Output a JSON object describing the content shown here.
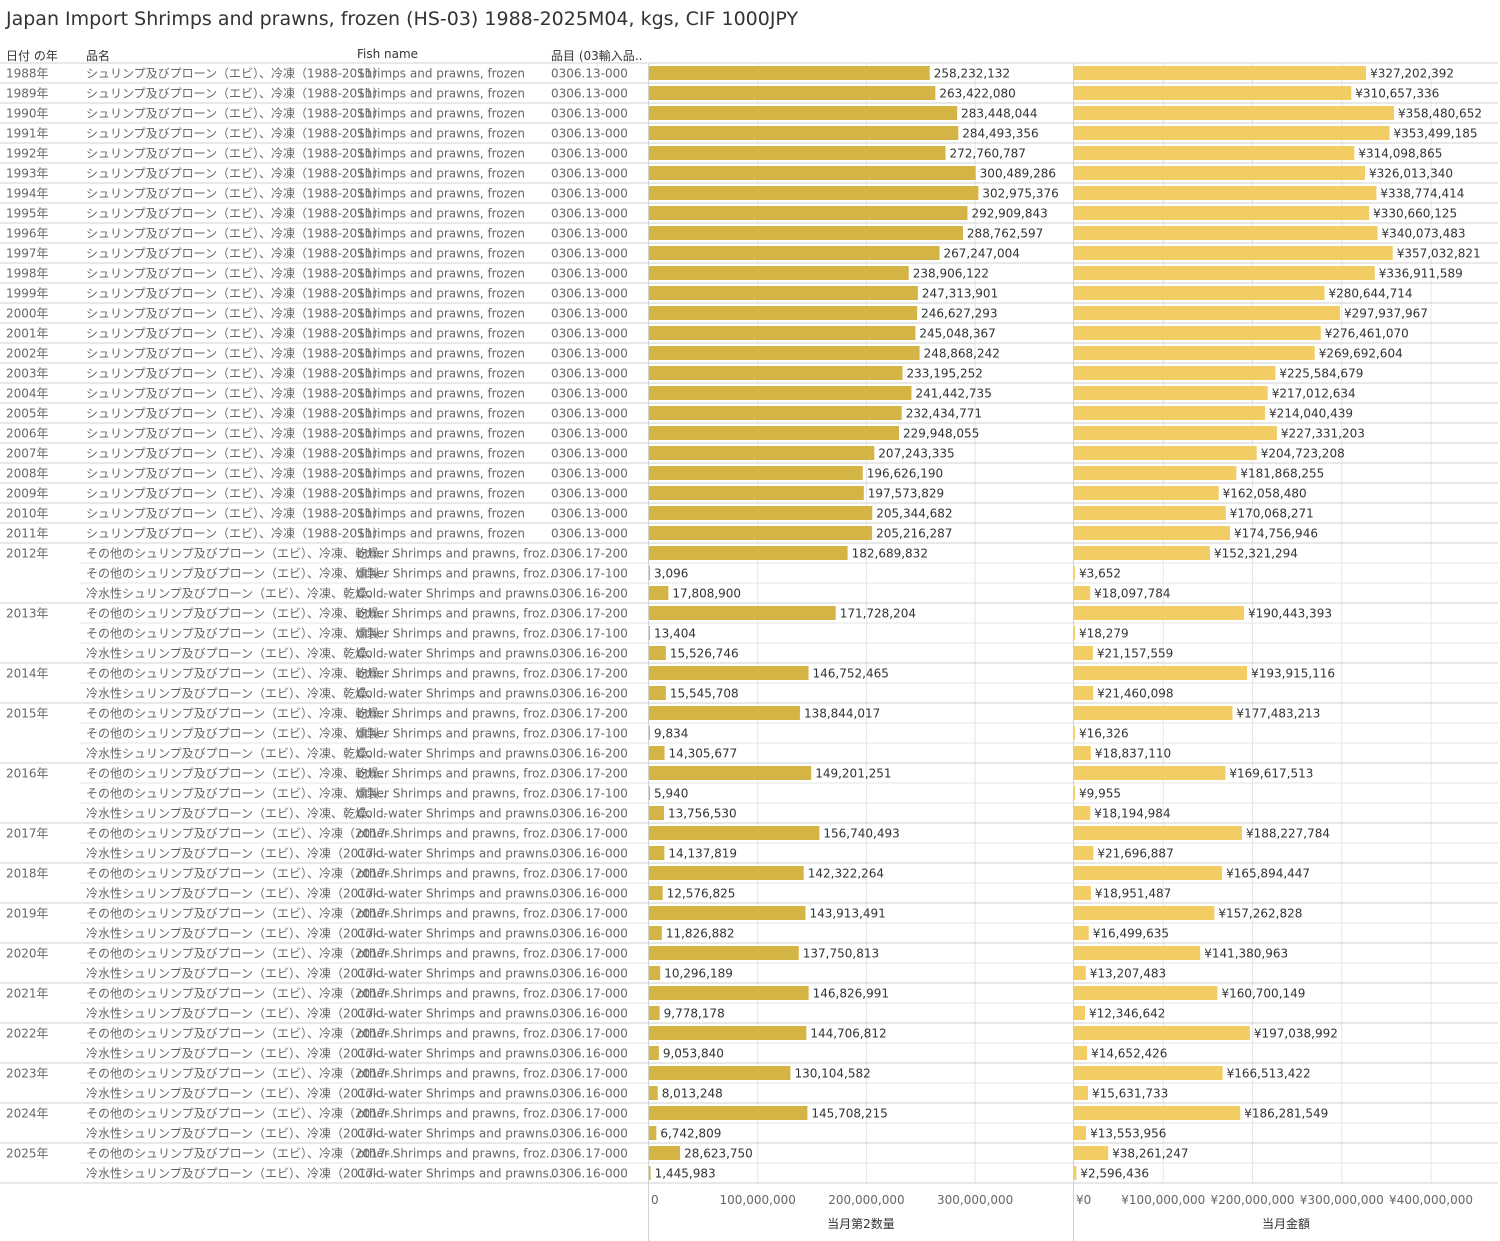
{
  "title": "Japan Import Shrimps and prawns, frozen (HS-03) 1988-2025M04, kgs, CIF 1000JPY",
  "headers": {
    "year": "日付 の年",
    "name": "品名",
    "fish": "Fish name",
    "code": "品目 (03輸入品.."
  },
  "colors": {
    "qty": "#d4b445",
    "val": "#f1cd63",
    "grid": "#e6e6e6",
    "axis": "#d2d2d2"
  },
  "chart_data": {
    "type": "bar",
    "xlabel_qty": "当月第2数量",
    "xlabel_val": "当月金額",
    "xlim_qty": [
      0,
      390000000
    ],
    "xlim_val": [
      0,
      475000000
    ],
    "ticks_qty": [
      "0",
      "100,000,000",
      "200,000,000",
      "300,000,000"
    ],
    "ticks_qty_values": [
      0,
      100000000,
      200000000,
      300000000
    ],
    "ticks_val": [
      "¥0",
      "¥100,000,000",
      "¥200,000,000",
      "¥300,000,000",
      "¥400,000,000"
    ],
    "ticks_val_values": [
      0,
      100000000,
      200000000,
      300000000,
      400000000
    ],
    "rows": [
      {
        "year": "1988年",
        "name": "シュリンプ及びプローン（エビ）、冷凍（1988-2011）",
        "fish": "Shrimps and prawns, frozen",
        "code": "0306.13-000",
        "qty": 258232132,
        "qty_label": "258,232,132",
        "val": 327202392,
        "val_label": "¥327,202,392"
      },
      {
        "year": "1989年",
        "name": "シュリンプ及びプローン（エビ）、冷凍（1988-2011）",
        "fish": "Shrimps and prawns, frozen",
        "code": "0306.13-000",
        "qty": 263422080,
        "qty_label": "263,422,080",
        "val": 310657336,
        "val_label": "¥310,657,336"
      },
      {
        "year": "1990年",
        "name": "シュリンプ及びプローン（エビ）、冷凍（1988-2011）",
        "fish": "Shrimps and prawns, frozen",
        "code": "0306.13-000",
        "qty": 283448044,
        "qty_label": "283,448,044",
        "val": 358480652,
        "val_label": "¥358,480,652"
      },
      {
        "year": "1991年",
        "name": "シュリンプ及びプローン（エビ）、冷凍（1988-2011）",
        "fish": "Shrimps and prawns, frozen",
        "code": "0306.13-000",
        "qty": 284493356,
        "qty_label": "284,493,356",
        "val": 353499185,
        "val_label": "¥353,499,185"
      },
      {
        "year": "1992年",
        "name": "シュリンプ及びプローン（エビ）、冷凍（1988-2011）",
        "fish": "Shrimps and prawns, frozen",
        "code": "0306.13-000",
        "qty": 272760787,
        "qty_label": "272,760,787",
        "val": 314098865,
        "val_label": "¥314,098,865"
      },
      {
        "year": "1993年",
        "name": "シュリンプ及びプローン（エビ）、冷凍（1988-2011）",
        "fish": "Shrimps and prawns, frozen",
        "code": "0306.13-000",
        "qty": 300489286,
        "qty_label": "300,489,286",
        "val": 326013340,
        "val_label": "¥326,013,340"
      },
      {
        "year": "1994年",
        "name": "シュリンプ及びプローン（エビ）、冷凍（1988-2011）",
        "fish": "Shrimps and prawns, frozen",
        "code": "0306.13-000",
        "qty": 302975376,
        "qty_label": "302,975,376",
        "val": 338774414,
        "val_label": "¥338,774,414"
      },
      {
        "year": "1995年",
        "name": "シュリンプ及びプローン（エビ）、冷凍（1988-2011）",
        "fish": "Shrimps and prawns, frozen",
        "code": "0306.13-000",
        "qty": 292909843,
        "qty_label": "292,909,843",
        "val": 330660125,
        "val_label": "¥330,660,125"
      },
      {
        "year": "1996年",
        "name": "シュリンプ及びプローン（エビ）、冷凍（1988-2011）",
        "fish": "Shrimps and prawns, frozen",
        "code": "0306.13-000",
        "qty": 288762597,
        "qty_label": "288,762,597",
        "val": 340073483,
        "val_label": "¥340,073,483"
      },
      {
        "year": "1997年",
        "name": "シュリンプ及びプローン（エビ）、冷凍（1988-2011）",
        "fish": "Shrimps and prawns, frozen",
        "code": "0306.13-000",
        "qty": 267247004,
        "qty_label": "267,247,004",
        "val": 357032821,
        "val_label": "¥357,032,821"
      },
      {
        "year": "1998年",
        "name": "シュリンプ及びプローン（エビ）、冷凍（1988-2011）",
        "fish": "Shrimps and prawns, frozen",
        "code": "0306.13-000",
        "qty": 238906122,
        "qty_label": "238,906,122",
        "val": 336911589,
        "val_label": "¥336,911,589"
      },
      {
        "year": "1999年",
        "name": "シュリンプ及びプローン（エビ）、冷凍（1988-2011）",
        "fish": "Shrimps and prawns, frozen",
        "code": "0306.13-000",
        "qty": 247313901,
        "qty_label": "247,313,901",
        "val": 280644714,
        "val_label": "¥280,644,714"
      },
      {
        "year": "2000年",
        "name": "シュリンプ及びプローン（エビ）、冷凍（1988-2011）",
        "fish": "Shrimps and prawns, frozen",
        "code": "0306.13-000",
        "qty": 246627293,
        "qty_label": "246,627,293",
        "val": 297937967,
        "val_label": "¥297,937,967"
      },
      {
        "year": "2001年",
        "name": "シュリンプ及びプローン（エビ）、冷凍（1988-2011）",
        "fish": "Shrimps and prawns, frozen",
        "code": "0306.13-000",
        "qty": 245048367,
        "qty_label": "245,048,367",
        "val": 276461070,
        "val_label": "¥276,461,070"
      },
      {
        "year": "2002年",
        "name": "シュリンプ及びプローン（エビ）、冷凍（1988-2011）",
        "fish": "Shrimps and prawns, frozen",
        "code": "0306.13-000",
        "qty": 248868242,
        "qty_label": "248,868,242",
        "val": 269692604,
        "val_label": "¥269,692,604"
      },
      {
        "year": "2003年",
        "name": "シュリンプ及びプローン（エビ）、冷凍（1988-2011）",
        "fish": "Shrimps and prawns, frozen",
        "code": "0306.13-000",
        "qty": 233195252,
        "qty_label": "233,195,252",
        "val": 225584679,
        "val_label": "¥225,584,679"
      },
      {
        "year": "2004年",
        "name": "シュリンプ及びプローン（エビ）、冷凍（1988-2011）",
        "fish": "Shrimps and prawns, frozen",
        "code": "0306.13-000",
        "qty": 241442735,
        "qty_label": "241,442,735",
        "val": 217012634,
        "val_label": "¥217,012,634"
      },
      {
        "year": "2005年",
        "name": "シュリンプ及びプローン（エビ）、冷凍（1988-2011）",
        "fish": "Shrimps and prawns, frozen",
        "code": "0306.13-000",
        "qty": 232434771,
        "qty_label": "232,434,771",
        "val": 214040439,
        "val_label": "¥214,040,439"
      },
      {
        "year": "2006年",
        "name": "シュリンプ及びプローン（エビ）、冷凍（1988-2011）",
        "fish": "Shrimps and prawns, frozen",
        "code": "0306.13-000",
        "qty": 229948055,
        "qty_label": "229,948,055",
        "val": 227331203,
        "val_label": "¥227,331,203"
      },
      {
        "year": "2007年",
        "name": "シュリンプ及びプローン（エビ）、冷凍（1988-2011）",
        "fish": "Shrimps and prawns, frozen",
        "code": "0306.13-000",
        "qty": 207243335,
        "qty_label": "207,243,335",
        "val": 204723208,
        "val_label": "¥204,723,208"
      },
      {
        "year": "2008年",
        "name": "シュリンプ及びプローン（エビ）、冷凍（1988-2011）",
        "fish": "Shrimps and prawns, frozen",
        "code": "0306.13-000",
        "qty": 196626190,
        "qty_label": "196,626,190",
        "val": 181868255,
        "val_label": "¥181,868,255"
      },
      {
        "year": "2009年",
        "name": "シュリンプ及びプローン（エビ）、冷凍（1988-2011）",
        "fish": "Shrimps and prawns, frozen",
        "code": "0306.13-000",
        "qty": 197573829,
        "qty_label": "197,573,829",
        "val": 162058480,
        "val_label": "¥162,058,480"
      },
      {
        "year": "2010年",
        "name": "シュリンプ及びプローン（エビ）、冷凍（1988-2011）",
        "fish": "Shrimps and prawns, frozen",
        "code": "0306.13-000",
        "qty": 205344682,
        "qty_label": "205,344,682",
        "val": 170068271,
        "val_label": "¥170,068,271"
      },
      {
        "year": "2011年",
        "name": "シュリンプ及びプローン（エビ）、冷凍（1988-2011）",
        "fish": "Shrimps and prawns, frozen",
        "code": "0306.13-000",
        "qty": 205216287,
        "qty_label": "205,216,287",
        "val": 174756946,
        "val_label": "¥174,756,946"
      },
      {
        "year": "2012年",
        "name": "その他のシュリンプ及びプローン（エビ）、冷凍、乾燥、..",
        "fish": "other Shrimps and prawns, froz..",
        "code": "0306.17-200",
        "qty": 182689832,
        "qty_label": "182,689,832",
        "val": 152321294,
        "val_label": "¥152,321,294"
      },
      {
        "year": "",
        "name": "その他のシュリンプ及びプローン（エビ）、冷凍、燻製..",
        "fish": "other Shrimps and prawns, froz..",
        "code": "0306.17-100",
        "qty": 3096,
        "qty_label": "3,096",
        "val": 3652,
        "val_label": "¥3,652"
      },
      {
        "year": "",
        "name": "冷水性シュリンプ及びプローン（エビ）、冷凍、乾燥、..",
        "fish": "Cold-water Shrimps and prawns..",
        "code": "0306.16-200",
        "qty": 17808900,
        "qty_label": "17,808,900",
        "val": 18097784,
        "val_label": "¥18,097,784"
      },
      {
        "year": "2013年",
        "name": "その他のシュリンプ及びプローン（エビ）、冷凍、乾燥、..",
        "fish": "other Shrimps and prawns, froz..",
        "code": "0306.17-200",
        "qty": 171728204,
        "qty_label": "171,728,204",
        "val": 190443393,
        "val_label": "¥190,443,393"
      },
      {
        "year": "",
        "name": "その他のシュリンプ及びプローン（エビ）、冷凍、燻製..",
        "fish": "other Shrimps and prawns, froz..",
        "code": "0306.17-100",
        "qty": 13404,
        "qty_label": "13,404",
        "val": 18279,
        "val_label": "¥18,279"
      },
      {
        "year": "",
        "name": "冷水性シュリンプ及びプローン（エビ）、冷凍、乾燥、..",
        "fish": "Cold-water Shrimps and prawns..",
        "code": "0306.16-200",
        "qty": 15526746,
        "qty_label": "15,526,746",
        "val": 21157559,
        "val_label": "¥21,157,559"
      },
      {
        "year": "2014年",
        "name": "その他のシュリンプ及びプローン（エビ）、冷凍、乾燥、..",
        "fish": "other Shrimps and prawns, froz..",
        "code": "0306.17-200",
        "qty": 146752465,
        "qty_label": "146,752,465",
        "val": 193915116,
        "val_label": "¥193,915,116"
      },
      {
        "year": "",
        "name": "冷水性シュリンプ及びプローン（エビ）、冷凍、乾燥、..",
        "fish": "Cold-water Shrimps and prawns..",
        "code": "0306.16-200",
        "qty": 15545708,
        "qty_label": "15,545,708",
        "val": 21460098,
        "val_label": "¥21,460,098"
      },
      {
        "year": "2015年",
        "name": "その他のシュリンプ及びプローン（エビ）、冷凍、乾燥、..",
        "fish": "other Shrimps and prawns, froz..",
        "code": "0306.17-200",
        "qty": 138844017,
        "qty_label": "138,844,017",
        "val": 177483213,
        "val_label": "¥177,483,213"
      },
      {
        "year": "",
        "name": "その他のシュリンプ及びプローン（エビ）、冷凍、燻製..",
        "fish": "other Shrimps and prawns, froz..",
        "code": "0306.17-100",
        "qty": 9834,
        "qty_label": "9,834",
        "val": 16326,
        "val_label": "¥16,326"
      },
      {
        "year": "",
        "name": "冷水性シュリンプ及びプローン（エビ）、冷凍、乾燥、..",
        "fish": "Cold-water Shrimps and prawns..",
        "code": "0306.16-200",
        "qty": 14305677,
        "qty_label": "14,305,677",
        "val": 18837110,
        "val_label": "¥18,837,110"
      },
      {
        "year": "2016年",
        "name": "その他のシュリンプ及びプローン（エビ）、冷凍、乾燥、..",
        "fish": "other Shrimps and prawns, froz..",
        "code": "0306.17-200",
        "qty": 149201251,
        "qty_label": "149,201,251",
        "val": 169617513,
        "val_label": "¥169,617,513"
      },
      {
        "year": "",
        "name": "その他のシュリンプ及びプローン（エビ）、冷凍、燻製..",
        "fish": "other Shrimps and prawns, froz..",
        "code": "0306.17-100",
        "qty": 5940,
        "qty_label": "5,940",
        "val": 9955,
        "val_label": "¥9,955"
      },
      {
        "year": "",
        "name": "冷水性シュリンプ及びプローン（エビ）、冷凍、乾燥、..",
        "fish": "Cold-water Shrimps and prawns..",
        "code": "0306.16-200",
        "qty": 13756530,
        "qty_label": "13,756,530",
        "val": 18194984,
        "val_label": "¥18,194,984"
      },
      {
        "year": "2017年",
        "name": "その他のシュリンプ及びプローン（エビ）、冷凍（2017-..",
        "fish": "other Shrimps and prawns, froz..",
        "code": "0306.17-000",
        "qty": 156740493,
        "qty_label": "156,740,493",
        "val": 188227784,
        "val_label": "¥188,227,784"
      },
      {
        "year": "",
        "name": "冷水性シュリンプ及びプローン（エビ）、冷凍（2017-..",
        "fish": "Cold-water Shrimps and prawns..",
        "code": "0306.16-000",
        "qty": 14137819,
        "qty_label": "14,137,819",
        "val": 21696887,
        "val_label": "¥21,696,887"
      },
      {
        "year": "2018年",
        "name": "その他のシュリンプ及びプローン（エビ）、冷凍（2017-..",
        "fish": "other Shrimps and prawns, froz..",
        "code": "0306.17-000",
        "qty": 142322264,
        "qty_label": "142,322,264",
        "val": 165894447,
        "val_label": "¥165,894,447"
      },
      {
        "year": "",
        "name": "冷水性シュリンプ及びプローン（エビ）、冷凍（2017-..",
        "fish": "Cold-water Shrimps and prawns..",
        "code": "0306.16-000",
        "qty": 12576825,
        "qty_label": "12,576,825",
        "val": 18951487,
        "val_label": "¥18,951,487"
      },
      {
        "year": "2019年",
        "name": "その他のシュリンプ及びプローン（エビ）、冷凍（2017-..",
        "fish": "other Shrimps and prawns, froz..",
        "code": "0306.17-000",
        "qty": 143913491,
        "qty_label": "143,913,491",
        "val": 157262828,
        "val_label": "¥157,262,828"
      },
      {
        "year": "",
        "name": "冷水性シュリンプ及びプローン（エビ）、冷凍（2017-..",
        "fish": "Cold-water Shrimps and prawns..",
        "code": "0306.16-000",
        "qty": 11826882,
        "qty_label": "11,826,882",
        "val": 16499635,
        "val_label": "¥16,499,635"
      },
      {
        "year": "2020年",
        "name": "その他のシュリンプ及びプローン（エビ）、冷凍（2017-..",
        "fish": "other Shrimps and prawns, froz..",
        "code": "0306.17-000",
        "qty": 137750813,
        "qty_label": "137,750,813",
        "val": 141380963,
        "val_label": "¥141,380,963"
      },
      {
        "year": "",
        "name": "冷水性シュリンプ及びプローン（エビ）、冷凍（2017-..",
        "fish": "Cold-water Shrimps and prawns..",
        "code": "0306.16-000",
        "qty": 10296189,
        "qty_label": "10,296,189",
        "val": 13207483,
        "val_label": "¥13,207,483"
      },
      {
        "year": "2021年",
        "name": "その他のシュリンプ及びプローン（エビ）、冷凍（2017-..",
        "fish": "other Shrimps and prawns, froz..",
        "code": "0306.17-000",
        "qty": 146826991,
        "qty_label": "146,826,991",
        "val": 160700149,
        "val_label": "¥160,700,149"
      },
      {
        "year": "",
        "name": "冷水性シュリンプ及びプローン（エビ）、冷凍（2017-..",
        "fish": "Cold-water Shrimps and prawns..",
        "code": "0306.16-000",
        "qty": 9778178,
        "qty_label": "9,778,178",
        "val": 12346642,
        "val_label": "¥12,346,642"
      },
      {
        "year": "2022年",
        "name": "その他のシュリンプ及びプローン（エビ）、冷凍（2017-..",
        "fish": "other Shrimps and prawns, froz..",
        "code": "0306.17-000",
        "qty": 144706812,
        "qty_label": "144,706,812",
        "val": 197038992,
        "val_label": "¥197,038,992"
      },
      {
        "year": "",
        "name": "冷水性シュリンプ及びプローン（エビ）、冷凍（2017-..",
        "fish": "Cold-water Shrimps and prawns..",
        "code": "0306.16-000",
        "qty": 9053840,
        "qty_label": "9,053,840",
        "val": 14652426,
        "val_label": "¥14,652,426"
      },
      {
        "year": "2023年",
        "name": "その他のシュリンプ及びプローン（エビ）、冷凍（2017-..",
        "fish": "other Shrimps and prawns, froz..",
        "code": "0306.17-000",
        "qty": 130104582,
        "qty_label": "130,104,582",
        "val": 166513422,
        "val_label": "¥166,513,422"
      },
      {
        "year": "",
        "name": "冷水性シュリンプ及びプローン（エビ）、冷凍（2017-..",
        "fish": "Cold-water Shrimps and prawns..",
        "code": "0306.16-000",
        "qty": 8013248,
        "qty_label": "8,013,248",
        "val": 15631733,
        "val_label": "¥15,631,733"
      },
      {
        "year": "2024年",
        "name": "その他のシュリンプ及びプローン（エビ）、冷凍（2017-..",
        "fish": "other Shrimps and prawns, froz..",
        "code": "0306.17-000",
        "qty": 145708215,
        "qty_label": "145,708,215",
        "val": 186281549,
        "val_label": "¥186,281,549"
      },
      {
        "year": "",
        "name": "冷水性シュリンプ及びプローン（エビ）、冷凍（2017-..",
        "fish": "Cold-water Shrimps and prawns..",
        "code": "0306.16-000",
        "qty": 6742809,
        "qty_label": "6,742,809",
        "val": 13553956,
        "val_label": "¥13,553,956"
      },
      {
        "year": "2025年",
        "name": "その他のシュリンプ及びプローン（エビ）、冷凍（2017-..",
        "fish": "other Shrimps and prawns, froz..",
        "code": "0306.17-000",
        "qty": 28623750,
        "qty_label": "28,623,750",
        "val": 38261247,
        "val_label": "¥38,261,247"
      },
      {
        "year": "",
        "name": "冷水性シュリンプ及びプローン（エビ）、冷凍（2017-..",
        "fish": "Cold-water Shrimps and prawns..",
        "code": "0306.16-000",
        "qty": 1445983,
        "qty_label": "1,445,983",
        "val": 2596436,
        "val_label": "¥2,596,436"
      }
    ]
  }
}
